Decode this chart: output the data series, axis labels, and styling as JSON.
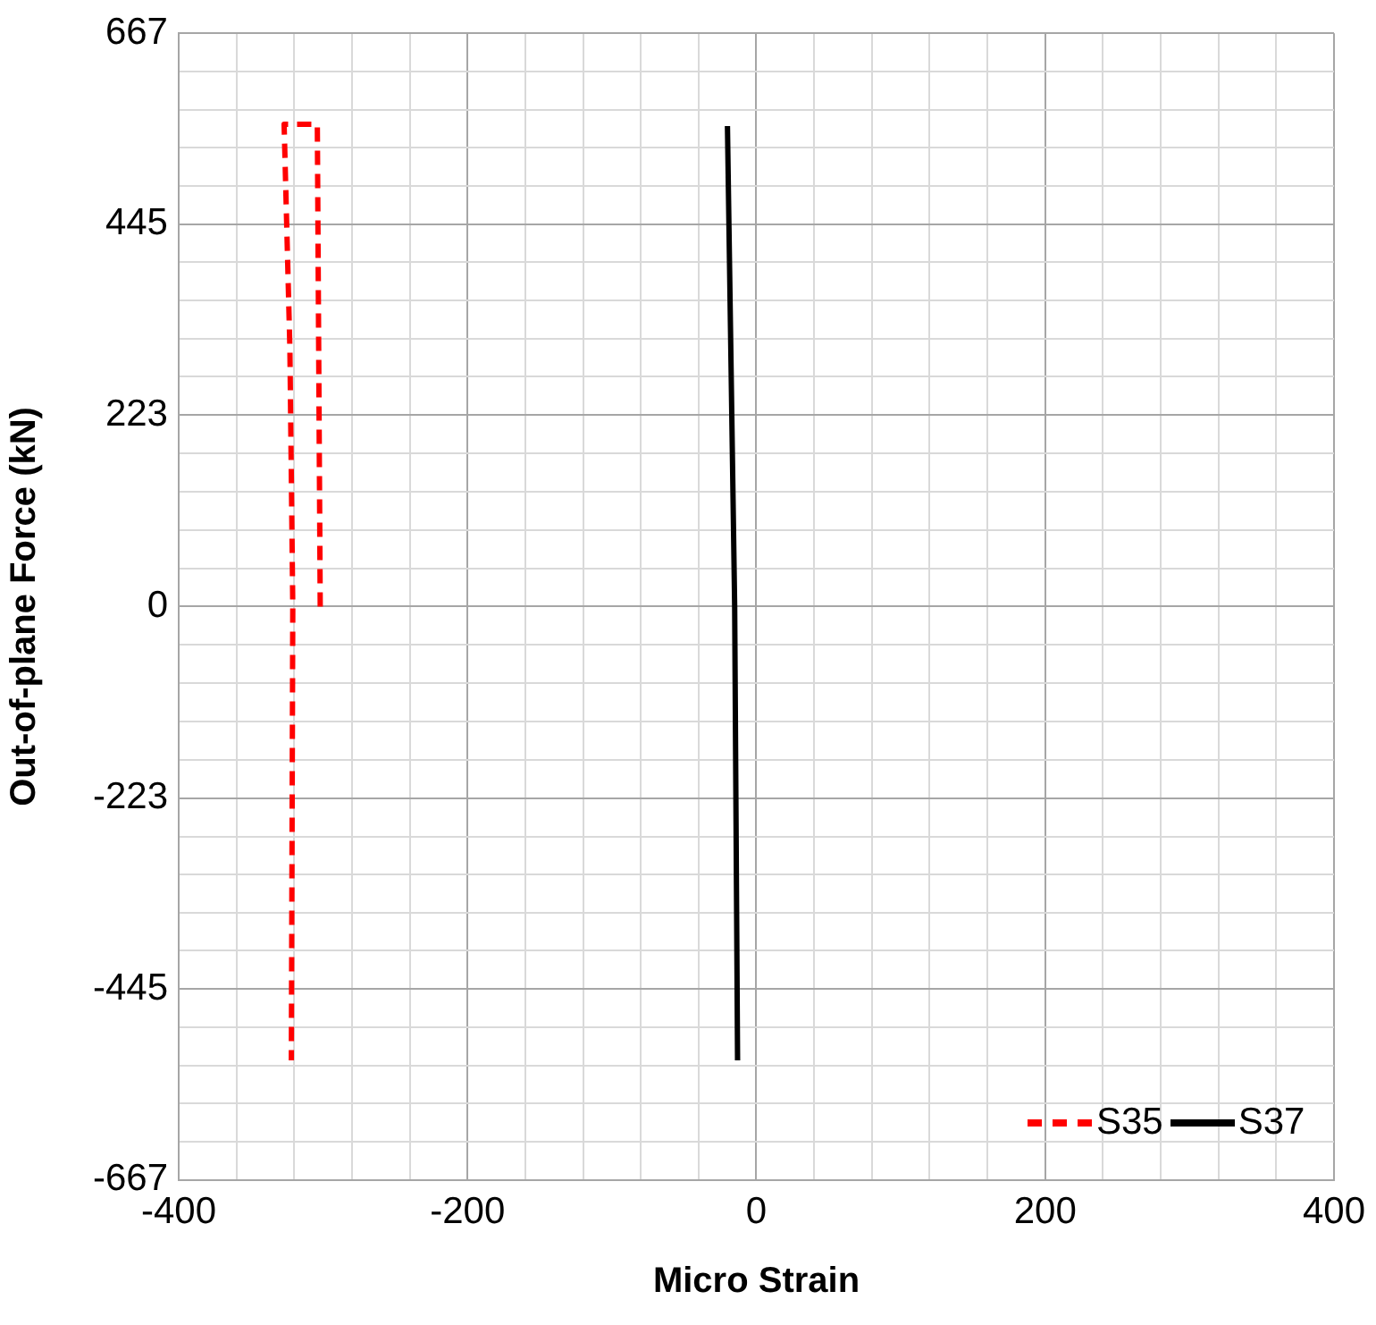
{
  "chart_data": {
    "type": "line",
    "xlabel": "Micro Strain",
    "ylabel": "Out-of-plane Force (kN)",
    "series": [
      {
        "name": "S35",
        "color": "#ff0000",
        "line_style": "dashed",
        "x": [
          -302,
          -304,
          -327,
          -323,
          -321,
          -322
        ],
        "values": [
          0,
          561,
          561,
          300,
          0,
          -528
        ]
      },
      {
        "name": "S37",
        "color": "#000000",
        "line_style": "solid",
        "x": [
          -20,
          -15,
          -13
        ],
        "values": [
          559,
          0,
          -528
        ]
      }
    ],
    "xlim": [
      -400,
      400
    ],
    "xticks": [
      -400,
      {
        "value": -360,
        "label": null
      },
      {
        "value": -320,
        "label": null
      },
      {
        "value": -280,
        "label": null
      },
      {
        "value": -240,
        "label": null
      },
      -200,
      {
        "value": -160,
        "label": null
      },
      {
        "value": -120,
        "label": null
      },
      {
        "value": -80,
        "label": null
      },
      {
        "value": -40,
        "label": null
      },
      0,
      {
        "value": 40,
        "label": null
      },
      {
        "value": 80,
        "label": null
      },
      {
        "value": 120,
        "label": null
      },
      {
        "value": 160,
        "label": null
      },
      200,
      {
        "value": 240,
        "label": null
      },
      {
        "value": 280,
        "label": null
      },
      {
        "value": 320,
        "label": null
      },
      {
        "value": 360,
        "label": null
      },
      400
    ],
    "ylim": [
      -667,
      667
    ],
    "yticks": [
      -667,
      {
        "value": -622.5,
        "label": null
      },
      {
        "value": -578,
        "label": null
      },
      {
        "value": -534,
        "label": null
      },
      {
        "value": -489.5,
        "label": null
      },
      -445,
      {
        "value": -400.5,
        "label": null
      },
      {
        "value": -356,
        "label": null
      },
      {
        "value": -311.5,
        "label": null
      },
      {
        "value": -267.5,
        "label": null
      },
      -223,
      {
        "value": -178,
        "label": null
      },
      {
        "value": -133.5,
        "label": null
      },
      {
        "value": -89,
        "label": null
      },
      {
        "value": -44.5,
        "label": null
      },
      0,
      {
        "value": 44.5,
        "label": null
      },
      {
        "value": 89,
        "label": null
      },
      {
        "value": 133.5,
        "label": null
      },
      {
        "value": 178,
        "label": null
      },
      223,
      {
        "value": 267.5,
        "label": null
      },
      {
        "value": 311.5,
        "label": null
      },
      {
        "value": 356,
        "label": null
      },
      {
        "value": 400.5,
        "label": null
      },
      445,
      {
        "value": 489.5,
        "label": null
      },
      {
        "value": 534,
        "label": null
      },
      {
        "value": 578,
        "label": null
      },
      {
        "value": 622.5,
        "label": null
      },
      667
    ],
    "grid": true,
    "legend": "bottom right",
    "marker": "none"
  }
}
